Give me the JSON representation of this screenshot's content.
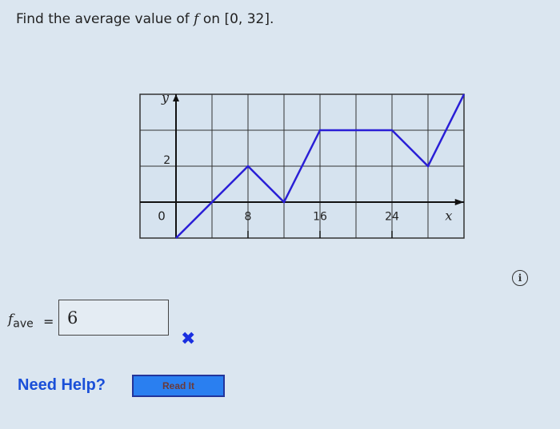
{
  "question": {
    "prefix": "Find the average value of ",
    "func": "f",
    "suffix": " on [0, 32]."
  },
  "answer": {
    "label_f": "f",
    "label_sub": "ave",
    "equals": "=",
    "value": "6",
    "status": "incorrect",
    "status_icon": "x-mark-icon"
  },
  "help": {
    "label": "Need Help?",
    "read_button": "Read It"
  },
  "info_icon": "i",
  "colors": {
    "line": "#2a1fd6",
    "wrong": "#1a2fe0",
    "button": "#2a7ff0"
  },
  "chart_data": {
    "type": "line",
    "xlabel": "x",
    "ylabel": "y",
    "x_ticks": [
      "8",
      "16",
      "24"
    ],
    "y_ticks": [
      "2"
    ],
    "origin_label": "0",
    "xlim": [
      -4,
      32
    ],
    "ylim": [
      -2,
      6
    ],
    "grid": true,
    "x": [
      0,
      4,
      8,
      12,
      16,
      24,
      28,
      32
    ],
    "y": [
      -2,
      0,
      2,
      0,
      4,
      4,
      2,
      6
    ]
  }
}
